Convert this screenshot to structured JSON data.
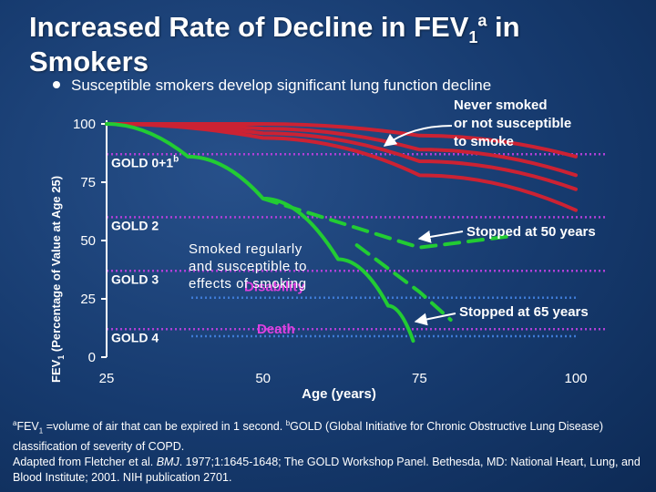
{
  "title": {
    "line1_main": "Increased Rate of Decline in FEV",
    "line1_sub": "1",
    "line1_sup": "a",
    "line1_end": " in",
    "line2": "Smokers"
  },
  "bullet": "Susceptible smokers develop significant lung function decline",
  "chart_data": {
    "type": "line",
    "x_ticks": [
      "25",
      "50",
      "75",
      "100"
    ],
    "y_ticks": [
      "100",
      "75",
      "50",
      "25",
      "0"
    ],
    "xlabel": "Age (years)",
    "ylabel_main": "FEV",
    "ylabel_sub": "1",
    "ylabel_rest": " (Percentage of Value at Age 25)",
    "xlim": [
      25,
      100
    ],
    "ylim": [
      0,
      100
    ],
    "gold_lines": [
      {
        "label": "GOLD 0+1",
        "sup": "b",
        "y": 87
      },
      {
        "label": "GOLD 2",
        "sup": "",
        "y": 60
      },
      {
        "label": "GOLD 3",
        "sup": "",
        "y": 37
      },
      {
        "label": "GOLD 4",
        "sup": "",
        "y": 12
      }
    ],
    "threshold_lines": [
      {
        "label": "Disability",
        "y": 25.5
      },
      {
        "label": "Death",
        "y": 9
      }
    ],
    "series": [
      {
        "color": "#cc2233",
        "style": "solid",
        "points": [
          [
            25,
            100
          ],
          [
            50,
            100
          ],
          [
            75,
            95
          ],
          [
            100,
            86
          ]
        ]
      },
      {
        "color": "#cc2233",
        "style": "solid",
        "points": [
          [
            25,
            100
          ],
          [
            50,
            98
          ],
          [
            75,
            89
          ],
          [
            100,
            78
          ]
        ]
      },
      {
        "color": "#cc2233",
        "style": "solid",
        "points": [
          [
            25,
            100
          ],
          [
            50,
            96
          ],
          [
            75,
            84
          ],
          [
            100,
            72
          ]
        ]
      },
      {
        "color": "#cc2233",
        "style": "solid",
        "points": [
          [
            25,
            100
          ],
          [
            50,
            94
          ],
          [
            75,
            78
          ],
          [
            100,
            63
          ]
        ]
      },
      {
        "color": "#22cc33",
        "style": "solid",
        "points": [
          [
            25,
            100
          ],
          [
            38,
            86
          ],
          [
            50,
            68
          ],
          [
            62,
            42
          ],
          [
            70,
            22
          ],
          [
            74,
            7
          ]
        ]
      },
      {
        "color": "#22cc33",
        "style": "dashed",
        "points": [
          [
            50,
            68
          ],
          [
            75,
            47
          ],
          [
            90,
            52
          ]
        ]
      },
      {
        "color": "#22cc33",
        "style": "dashed",
        "points": [
          [
            65,
            48
          ],
          [
            75,
            28
          ],
          [
            80,
            16
          ]
        ]
      }
    ],
    "annotations": {
      "never_smoked": [
        "Never smoked",
        "or not susceptible",
        "to smoke"
      ],
      "smoked_regularly": [
        "Smoked regularly",
        "and susceptible to",
        "effects of smoking"
      ],
      "stopped_50": "Stopped at 50 years",
      "stopped_65": "Stopped at 65 years"
    }
  },
  "footnote": {
    "line1_sup_a": "a",
    "line1_fev": "FEV",
    "line1_sub": "1",
    "line1_rest": " =volume of air that can be expired in 1 second. ",
    "line1_sup_b": "b",
    "line1_gold": "GOLD (Global Initiative for Chronic Obstructive Lung Disease) classification of severity of COPD.",
    "line2_a": "Adapted from Fletcher et al. ",
    "line2_bmj": "BMJ",
    "line2_b": ". 1977;1:1645-1648; The GOLD Workshop Panel. Bethesda, MD: National Heart, Lung, and Blood Institute; 2001. NIH publication 2701."
  },
  "colors": {
    "background": "#163a6e",
    "never_smoked_lines": "#cc2233",
    "smoker_lines": "#22cc33",
    "gold_dotted_lines": "#b040d8",
    "threshold_dotted_lines": "#3e7bd6",
    "text": "#ffffff"
  }
}
